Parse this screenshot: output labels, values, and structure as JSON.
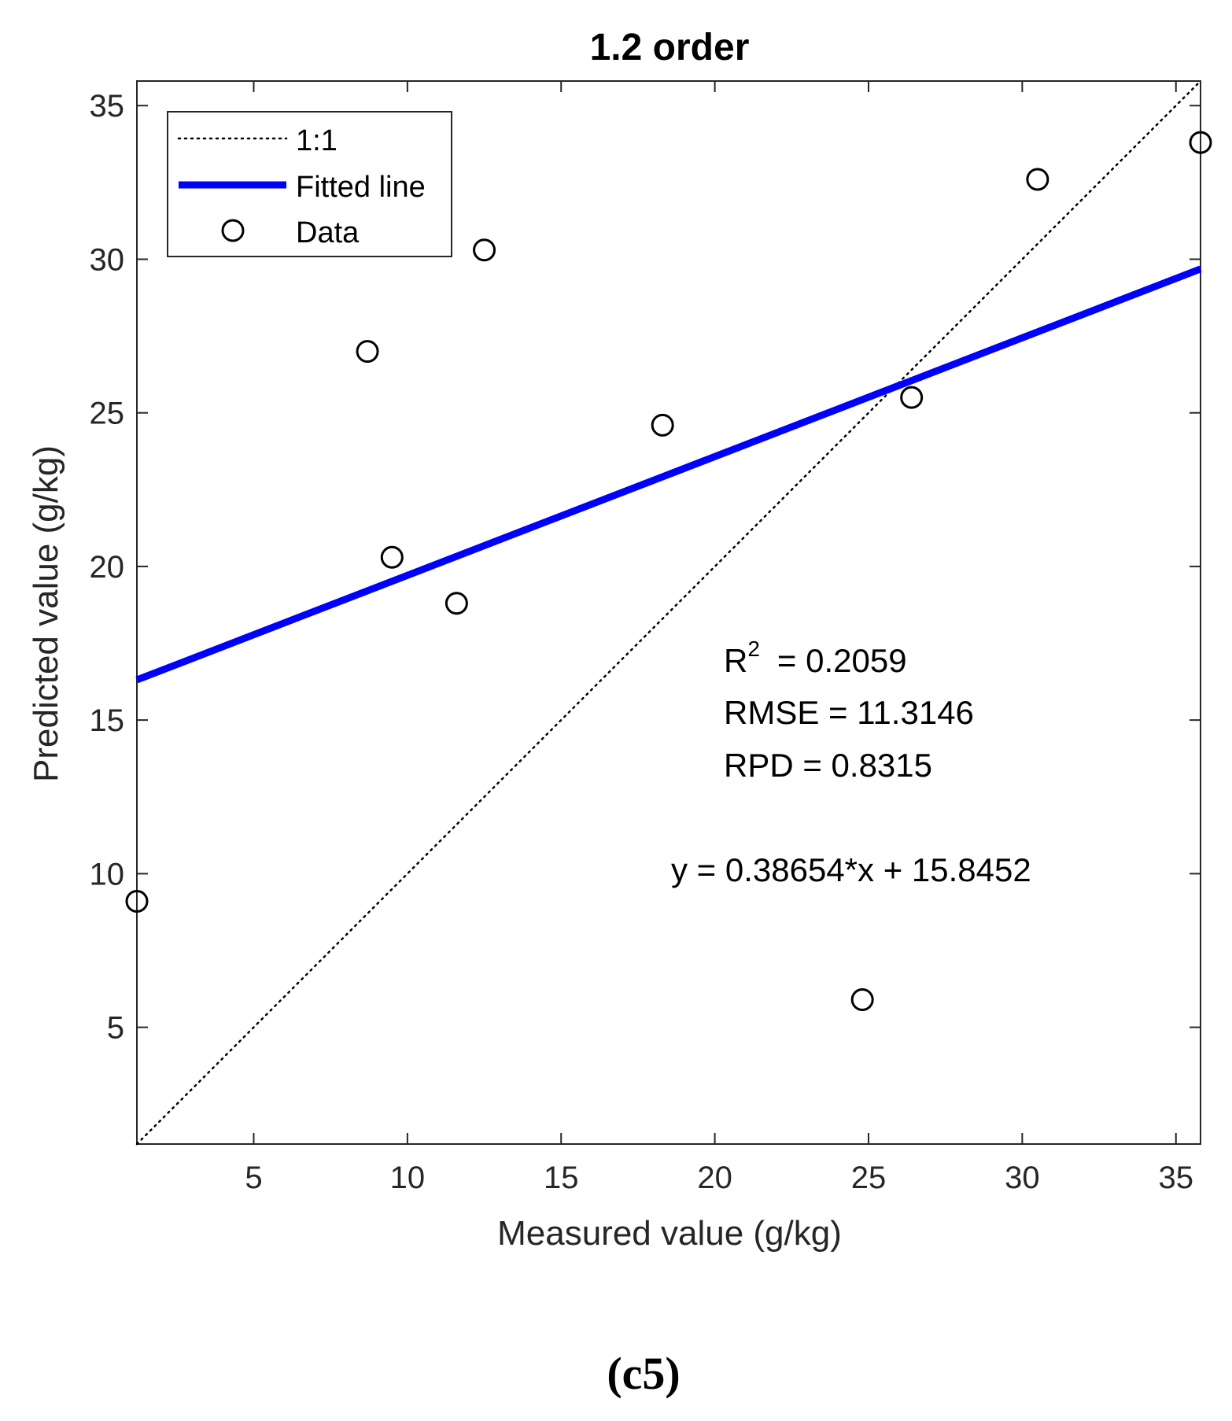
{
  "chart_data": {
    "type": "scatter",
    "title": "1.2 order",
    "xlabel": "Measured value (g/kg)",
    "ylabel": "Predicted value (g/kg)",
    "xlim": [
      1.2,
      35.8
    ],
    "ylim": [
      1.2,
      35.8
    ],
    "xticks": [
      5,
      10,
      15,
      20,
      25,
      30,
      35
    ],
    "yticks": [
      5,
      10,
      15,
      20,
      25,
      30,
      35
    ],
    "grid": false,
    "legend_position": "top-left",
    "legend": {
      "one_to_one": "1:1",
      "fitted": "Fitted line",
      "data": "Data"
    },
    "series": [
      {
        "name": "Data",
        "points": [
          {
            "x": 1.2,
            "y": 9.1
          },
          {
            "x": 8.7,
            "y": 27.0
          },
          {
            "x": 9.5,
            "y": 20.3
          },
          {
            "x": 11.6,
            "y": 18.8
          },
          {
            "x": 12.5,
            "y": 30.3
          },
          {
            "x": 18.3,
            "y": 24.6
          },
          {
            "x": 24.8,
            "y": 5.9
          },
          {
            "x": 26.4,
            "y": 25.5
          },
          {
            "x": 30.5,
            "y": 32.6
          },
          {
            "x": 35.8,
            "y": 33.8
          }
        ]
      }
    ],
    "fit": {
      "slope": 0.38654,
      "intercept": 15.8452
    },
    "annotations": {
      "r2_label": "R",
      "r2_sup": "2",
      "r2_value": "=  0.2059",
      "rmse": "RMSE = 11.3146",
      "rpd": "RPD  = 0.8315",
      "equation": "y = 0.38654*x + 15.8452"
    },
    "colors": {
      "fit_line": "#0000ff",
      "axes": "#262626",
      "text": "#262626",
      "markers": "#000000"
    }
  },
  "caption": "(c5)"
}
